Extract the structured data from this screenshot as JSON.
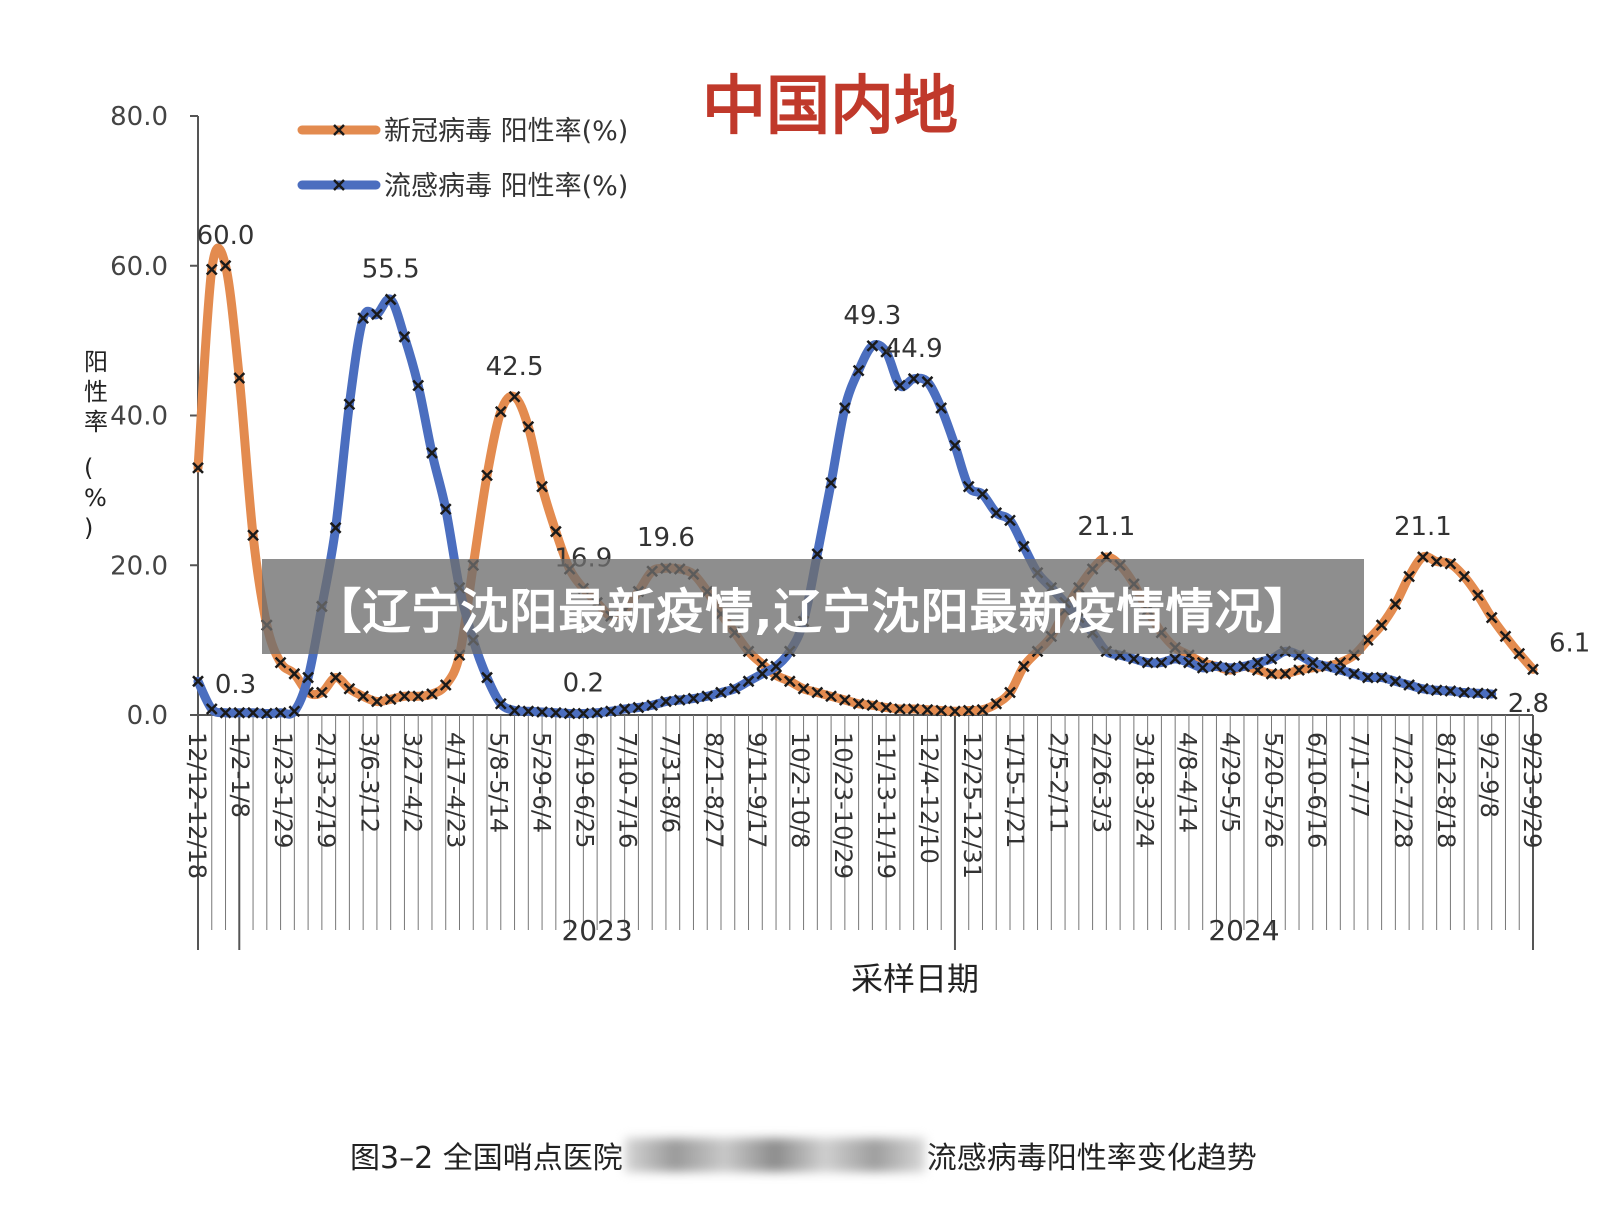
{
  "chart_data": {
    "type": "line",
    "title": "中国内地",
    "xlabel": "采样日期",
    "ylabel": "阳性率\n(%)",
    "ylim": [
      0,
      80
    ],
    "yticks": [
      "0.0",
      "20.0",
      "40.0",
      "60.0",
      "80.0"
    ],
    "grid": false,
    "legend": "top-left",
    "x_tick_labels": [
      "12/12-12/18",
      "1/2-1/8",
      "1/23-1/29",
      "2/13-2/19",
      "3/6-3/12",
      "3/27-4/2",
      "4/17-4/23",
      "5/8-5/14",
      "5/29-6/4",
      "6/19-6/25",
      "7/10-7/16",
      "7/31-8/6",
      "8/21-8/27",
      "9/11-9/17",
      "10/2-10/8",
      "10/23-10/29",
      "11/13-11/19",
      "12/4-12/10",
      "12/25-12/31",
      "1/15-1/21",
      "2/5-2/11",
      "2/26-3/3",
      "3/18-3/24",
      "4/8-4/14",
      "4/29-5/5",
      "5/20-5/26",
      "6/10-6/16",
      "7/1-7/7",
      "7/22-7/28",
      "8/12-8/18",
      "9/2-9/8",
      "9/23-9/29"
    ],
    "year_labels": [
      "2023",
      "2024"
    ],
    "series": [
      {
        "name": "新冠病毒 阳性率(%)",
        "color": "#E38B4F",
        "values": [
          33,
          59.5,
          60,
          45,
          24,
          12,
          7,
          5.5,
          3,
          3,
          5,
          3.5,
          2.5,
          1.8,
          2.1,
          2.5,
          2.5,
          2.8,
          4,
          8,
          20,
          32,
          40.5,
          42.5,
          38.5,
          30.5,
          24.5,
          19.5,
          16.9,
          15,
          13.2,
          14,
          16.5,
          19.2,
          19.6,
          19.5,
          18.8,
          16.5,
          13.5,
          11,
          8.5,
          6.8,
          5.3,
          4.5,
          3.5,
          3,
          2.5,
          2,
          1.5,
          1.3,
          1,
          0.8,
          0.8,
          0.7,
          0.6,
          0.5,
          0.6,
          0.7,
          1.5,
          3,
          6.5,
          8.5,
          10.5,
          14,
          17,
          19.5,
          21.1,
          20,
          17.5,
          14,
          11,
          9,
          8,
          7,
          6.5,
          6,
          6.5,
          6,
          5.5,
          5.5,
          6,
          6.3,
          6.5,
          7,
          8,
          10,
          12,
          14.8,
          18.5,
          21.1,
          20.5,
          20.2,
          18.5,
          16,
          13,
          10.5,
          8.2,
          6.1
        ],
        "labels": [
          {
            "index": 2,
            "text": "60.0"
          },
          {
            "index": 23,
            "text": "42.5"
          },
          {
            "index": 28,
            "text": "16.9"
          },
          {
            "index": 34,
            "text": "19.6"
          },
          {
            "index": 66,
            "text": "21.1"
          },
          {
            "index": 89,
            "text": "21.1"
          },
          {
            "index": 97,
            "text": "6.1"
          }
        ]
      },
      {
        "name": "流感病毒 阳性率(%)",
        "color": "#4B6EBF",
        "values": [
          4.5,
          0.8,
          0.3,
          0.3,
          0.3,
          0.2,
          0.3,
          0.5,
          5,
          14.5,
          25,
          41.5,
          53,
          53.5,
          55.5,
          50.5,
          44,
          35,
          27.5,
          17,
          10,
          5,
          1.5,
          0.6,
          0.5,
          0.4,
          0.3,
          0.2,
          0.2,
          0.3,
          0.5,
          0.8,
          1,
          1.3,
          1.8,
          2,
          2.2,
          2.5,
          3,
          3.5,
          4.5,
          5.5,
          6.5,
          8.5,
          12.5,
          21.5,
          31,
          41,
          46,
          49.3,
          48.5,
          44,
          44.9,
          44.5,
          41,
          36,
          30.5,
          29.5,
          27,
          26,
          22.5,
          19,
          17,
          15,
          13,
          11,
          8.5,
          8,
          7.5,
          7,
          7,
          7.5,
          7,
          6.3,
          6.5,
          6.3,
          6.5,
          7,
          7.5,
          8.5,
          8,
          7,
          6.5,
          6,
          5.5,
          5,
          5,
          4.5,
          4,
          3.5,
          3.3,
          3.2,
          3,
          2.9,
          2.8
        ],
        "labels": [
          {
            "index": 2,
            "text": "0.3"
          },
          {
            "index": 14,
            "text": "55.5"
          },
          {
            "index": 28,
            "text": "0.2"
          },
          {
            "index": 49,
            "text": "49.3"
          },
          {
            "index": 52,
            "text": "44.9"
          },
          {
            "index": 94,
            "text": "2.8"
          }
        ]
      }
    ]
  },
  "banner": {
    "text": "【辽宁沈阳最新疫情,辽宁沈阳最新疫情情况】"
  },
  "caption": {
    "prefix": "图3–2 全国哨点医院",
    "suffix": "流感病毒阳性率变化趋势"
  }
}
